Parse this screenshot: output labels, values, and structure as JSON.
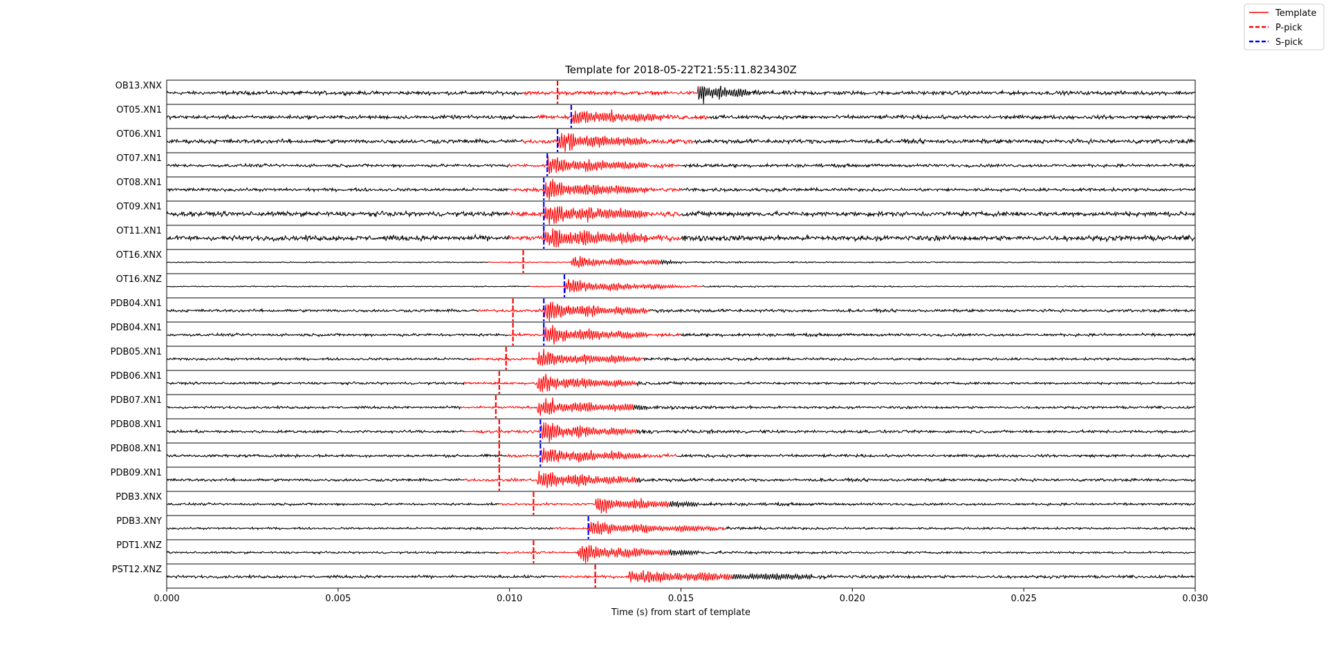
{
  "chart_data": {
    "type": "line",
    "title": "Template for 2018-05-22T21:55:11.823430Z",
    "xlabel": "Time (s) from start of template",
    "ylabel": "",
    "xlim": [
      0.0,
      0.03
    ],
    "xticks": [
      "0.000",
      "0.005",
      "0.010",
      "0.015",
      "0.020",
      "0.025",
      "0.030"
    ],
    "grid": false,
    "legend": {
      "placement": "top-right",
      "entries": [
        {
          "label": "Template",
          "color": "#ff0000",
          "style": "solid"
        },
        {
          "label": "P-pick",
          "color": "#ff0000",
          "style": "dashed"
        },
        {
          "label": "S-pick",
          "color": "#0000ff",
          "style": "dashed"
        }
      ]
    },
    "colors": {
      "trace": "#000000",
      "template": "#ff0000",
      "p_pick": "#ff0000",
      "s_pick": "#0000ff"
    },
    "traces": [
      {
        "label": "OB13.XNX",
        "template_start": 0.0104,
        "template_end": 0.0155,
        "pick": 0.0114,
        "pick_type": "P",
        "amp": 0.55,
        "onset": 0.0155,
        "onset_amp": 0.95,
        "coda_end": 0.017
      },
      {
        "label": "OT05.XN1",
        "template_start": 0.0108,
        "template_end": 0.0158,
        "pick": 0.0118,
        "pick_type": "S",
        "amp": 0.55,
        "onset": 0.0118,
        "onset_amp": 0.8,
        "coda_end": 0.0145
      },
      {
        "label": "OT06.XN1",
        "template_start": 0.0104,
        "template_end": 0.0154,
        "pick": 0.0114,
        "pick_type": "S",
        "amp": 0.6,
        "onset": 0.0114,
        "onset_amp": 0.9,
        "coda_end": 0.014
      },
      {
        "label": "OT07.XN1",
        "template_start": 0.01,
        "template_end": 0.015,
        "pick": 0.0111,
        "pick_type": "S",
        "amp": 0.45,
        "onset": 0.0111,
        "onset_amp": 0.95,
        "coda_end": 0.014
      },
      {
        "label": "OT08.XN1",
        "template_start": 0.01,
        "template_end": 0.015,
        "pick": 0.011,
        "pick_type": "S",
        "amp": 0.45,
        "onset": 0.011,
        "onset_amp": 0.95,
        "coda_end": 0.014
      },
      {
        "label": "OT09.XN1",
        "template_start": 0.01,
        "template_end": 0.015,
        "pick": 0.011,
        "pick_type": "S",
        "amp": 0.7,
        "onset": 0.011,
        "onset_amp": 0.95,
        "coda_end": 0.014
      },
      {
        "label": "OT11.XN1",
        "template_start": 0.01,
        "template_end": 0.015,
        "pick": 0.011,
        "pick_type": "S",
        "amp": 0.75,
        "onset": 0.011,
        "onset_amp": 0.95,
        "coda_end": 0.014
      },
      {
        "label": "OT16.XNX",
        "template_start": 0.0094,
        "template_end": 0.0144,
        "pick": 0.0104,
        "pick_type": "P",
        "amp": 0.15,
        "onset": 0.0118,
        "onset_amp": 0.7,
        "coda_end": 0.015
      },
      {
        "label": "OT16.XNZ",
        "template_start": 0.0106,
        "template_end": 0.0156,
        "pick": 0.0116,
        "pick_type": "S",
        "amp": 0.15,
        "onset": 0.0116,
        "onset_amp": 0.75,
        "coda_end": 0.015
      },
      {
        "label": "PDB04.XN1",
        "template_start": 0.0091,
        "template_end": 0.0141,
        "pick": 0.0101,
        "pick_type": "P",
        "pick2": 0.011,
        "pick2_type": "S",
        "amp": 0.4,
        "onset": 0.011,
        "onset_amp": 0.95,
        "coda_end": 0.014
      },
      {
        "label": "PDB04.XN1",
        "template_start": 0.01,
        "template_end": 0.015,
        "pick": 0.0101,
        "pick_type": "P",
        "pick2": 0.011,
        "pick2_type": "S",
        "amp": 0.4,
        "onset": 0.011,
        "onset_amp": 0.95,
        "coda_end": 0.014
      },
      {
        "label": "PDB05.XN1",
        "template_start": 0.0089,
        "template_end": 0.0139,
        "pick": 0.0099,
        "pick_type": "P",
        "amp": 0.35,
        "onset": 0.0108,
        "onset_amp": 0.9,
        "coda_end": 0.0138
      },
      {
        "label": "PDB06.XN1",
        "template_start": 0.0087,
        "template_end": 0.0137,
        "pick": 0.0097,
        "pick_type": "P",
        "amp": 0.35,
        "onset": 0.0108,
        "onset_amp": 0.9,
        "coda_end": 0.0138
      },
      {
        "label": "PDB07.XN1",
        "template_start": 0.0086,
        "template_end": 0.0136,
        "pick": 0.0096,
        "pick_type": "P",
        "amp": 0.35,
        "onset": 0.0108,
        "onset_amp": 0.9,
        "coda_end": 0.014
      },
      {
        "label": "PDB08.XN1",
        "template_start": 0.0087,
        "template_end": 0.0137,
        "pick": 0.0097,
        "pick_type": "P",
        "pick2": 0.0109,
        "pick2_type": "S",
        "amp": 0.4,
        "onset": 0.0109,
        "onset_amp": 0.95,
        "coda_end": 0.0138
      },
      {
        "label": "PDB08.XN1",
        "template_start": 0.0099,
        "template_end": 0.0149,
        "pick": 0.0097,
        "pick_type": "P",
        "pick2": 0.0109,
        "pick2_type": "S",
        "amp": 0.4,
        "onset": 0.0109,
        "onset_amp": 0.95,
        "coda_end": 0.0138
      },
      {
        "label": "PDB09.XN1",
        "template_start": 0.0087,
        "template_end": 0.0137,
        "pick": 0.0097,
        "pick_type": "P",
        "amp": 0.4,
        "onset": 0.0108,
        "onset_amp": 0.95,
        "coda_end": 0.0138
      },
      {
        "label": "PDB3.XNX",
        "template_start": 0.0097,
        "template_end": 0.0147,
        "pick": 0.0107,
        "pick_type": "P",
        "amp": 0.35,
        "onset": 0.0125,
        "onset_amp": 0.75,
        "coda_end": 0.0155
      },
      {
        "label": "PDB3.XNY",
        "template_start": 0.0113,
        "template_end": 0.0163,
        "pick": 0.0123,
        "pick_type": "S",
        "amp": 0.3,
        "onset": 0.0123,
        "onset_amp": 0.75,
        "coda_end": 0.016
      },
      {
        "label": "PDT1.XNZ",
        "template_start": 0.0097,
        "template_end": 0.0147,
        "pick": 0.0107,
        "pick_type": "P",
        "amp": 0.3,
        "onset": 0.012,
        "onset_amp": 0.85,
        "coda_end": 0.0155
      },
      {
        "label": "PST12.XNZ",
        "template_start": 0.0115,
        "template_end": 0.0165,
        "pick": 0.0125,
        "pick_type": "P",
        "amp": 0.4,
        "onset": 0.0135,
        "onset_amp": 0.6,
        "coda_end": 0.0188
      }
    ]
  }
}
